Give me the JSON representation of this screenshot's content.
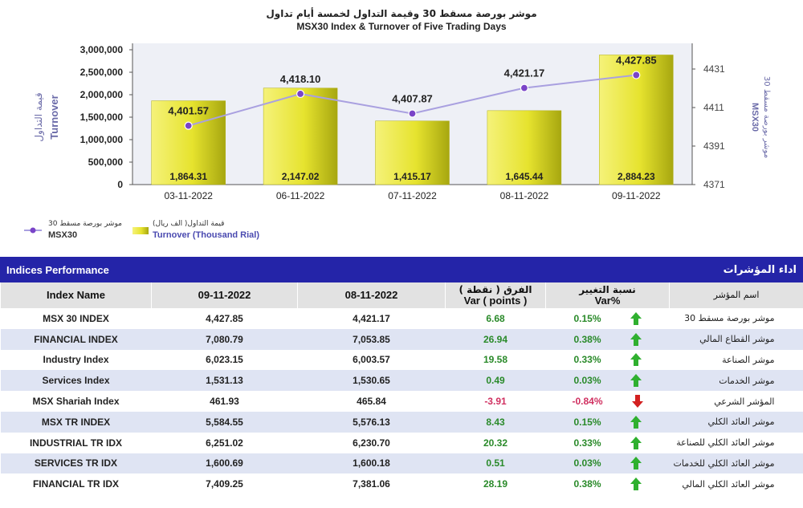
{
  "chart_data": {
    "type": "bar+line",
    "title_ar": "موشر بورصة مسقط 30 وقيمة التداول لخمسة أيام تداول",
    "title": "MSX30 Index & Turnover of Five Trading Days",
    "categories": [
      "03-11-2022",
      "06-11-2022",
      "07-11-2022",
      "08-11-2022",
      "09-11-2022"
    ],
    "series": [
      {
        "name": "Turnover (Thousand Rial)",
        "name_ar": "قيمة التداول( الف ريال)",
        "type": "bar",
        "axis": "left",
        "values": [
          1864.31,
          2147.02,
          1415.17,
          1645.44,
          2884.23
        ]
      },
      {
        "name": "MSX30",
        "name_ar": "موشر بورصة مسقط 30",
        "type": "line",
        "axis": "right",
        "values": [
          4401.57,
          4418.1,
          4407.87,
          4421.17,
          4427.85
        ]
      }
    ],
    "bar_labels": [
      "1,864.31",
      "2,147.02",
      "1,415.17",
      "1,645.44",
      "2,884.23"
    ],
    "line_labels": [
      "4,401.57",
      "4,418.10",
      "4,407.87",
      "4,421.17",
      "4,427.85"
    ],
    "y_left_label": "Turnover",
    "y_left_label_ar": "قيمة التداول",
    "y_left_ticks": [
      "0",
      "500,000",
      "1,000,000",
      "1,500,000",
      "2,000,000",
      "2,500,000",
      "3,000,000"
    ],
    "y_left_range": [
      0,
      3000000
    ],
    "y_right_label": "MSX30",
    "y_right_label_ar": "موشر بورصة مسقط 30",
    "y_right_ticks": [
      "4371",
      "4391",
      "4411",
      "4431"
    ],
    "y_right_range": [
      4371,
      4441
    ],
    "legend_position": "bottom-left",
    "grid": false,
    "colors": {
      "bar": "#d9d92a",
      "line": "#a9a0e0",
      "marker": "#7a44c8",
      "plot_bg": "#eef0f6"
    }
  },
  "table": {
    "title": "Indices Performance",
    "title_ar": "اداء المؤشرات",
    "headers": {
      "name": "Index Name",
      "d1": "09-11-2022",
      "d2": "08-11-2022",
      "var_ar": "الفرق ( نقطة )",
      "var": "Var ( points )",
      "pct_ar": "نسبة التغيير",
      "pct": "Var%",
      "name_ar": "اسم المؤشر"
    },
    "rows": [
      {
        "name": "MSX 30 INDEX",
        "d1": "4,427.85",
        "d2": "4,421.17",
        "var": "6.68",
        "pct": "0.15%",
        "dir": "up",
        "name_ar": "موشر بورصة مسقط 30"
      },
      {
        "name": "FINANCIAL INDEX",
        "d1": "7,080.79",
        "d2": "7,053.85",
        "var": "26.94",
        "pct": "0.38%",
        "dir": "up",
        "name_ar": "موشر القطاع المالي"
      },
      {
        "name": "Industry Index",
        "d1": "6,023.15",
        "d2": "6,003.57",
        "var": "19.58",
        "pct": "0.33%",
        "dir": "up",
        "name_ar": "موشر الصناعة"
      },
      {
        "name": "Services Index",
        "d1": "1,531.13",
        "d2": "1,530.65",
        "var": "0.49",
        "pct": "0.03%",
        "dir": "up",
        "name_ar": "موشر الخدمات"
      },
      {
        "name": "MSX Shariah Index",
        "d1": "461.93",
        "d2": "465.84",
        "var": "-3.91",
        "pct": "-0.84%",
        "dir": "down",
        "name_ar": "المؤشر الشرعي"
      },
      {
        "name": "MSX TR INDEX",
        "d1": "5,584.55",
        "d2": "5,576.13",
        "var": "8.43",
        "pct": "0.15%",
        "dir": "up",
        "name_ar": "موشر العائد الكلي"
      },
      {
        "name": "INDUSTRIAL TR IDX",
        "d1": "6,251.02",
        "d2": "6,230.70",
        "var": "20.32",
        "pct": "0.33%",
        "dir": "up",
        "name_ar": "موشر العائد الكلي للصناعة"
      },
      {
        "name": "SERVICES TR IDX",
        "d1": "1,600.69",
        "d2": "1,600.18",
        "var": "0.51",
        "pct": "0.03%",
        "dir": "up",
        "name_ar": "موشر العائد الكلي للخدمات"
      },
      {
        "name": "FINANCIAL TR IDX",
        "d1": "7,409.25",
        "d2": "7,381.06",
        "var": "28.19",
        "pct": "0.38%",
        "dir": "up",
        "name_ar": "موشر العائد الكلي المالي"
      }
    ]
  }
}
